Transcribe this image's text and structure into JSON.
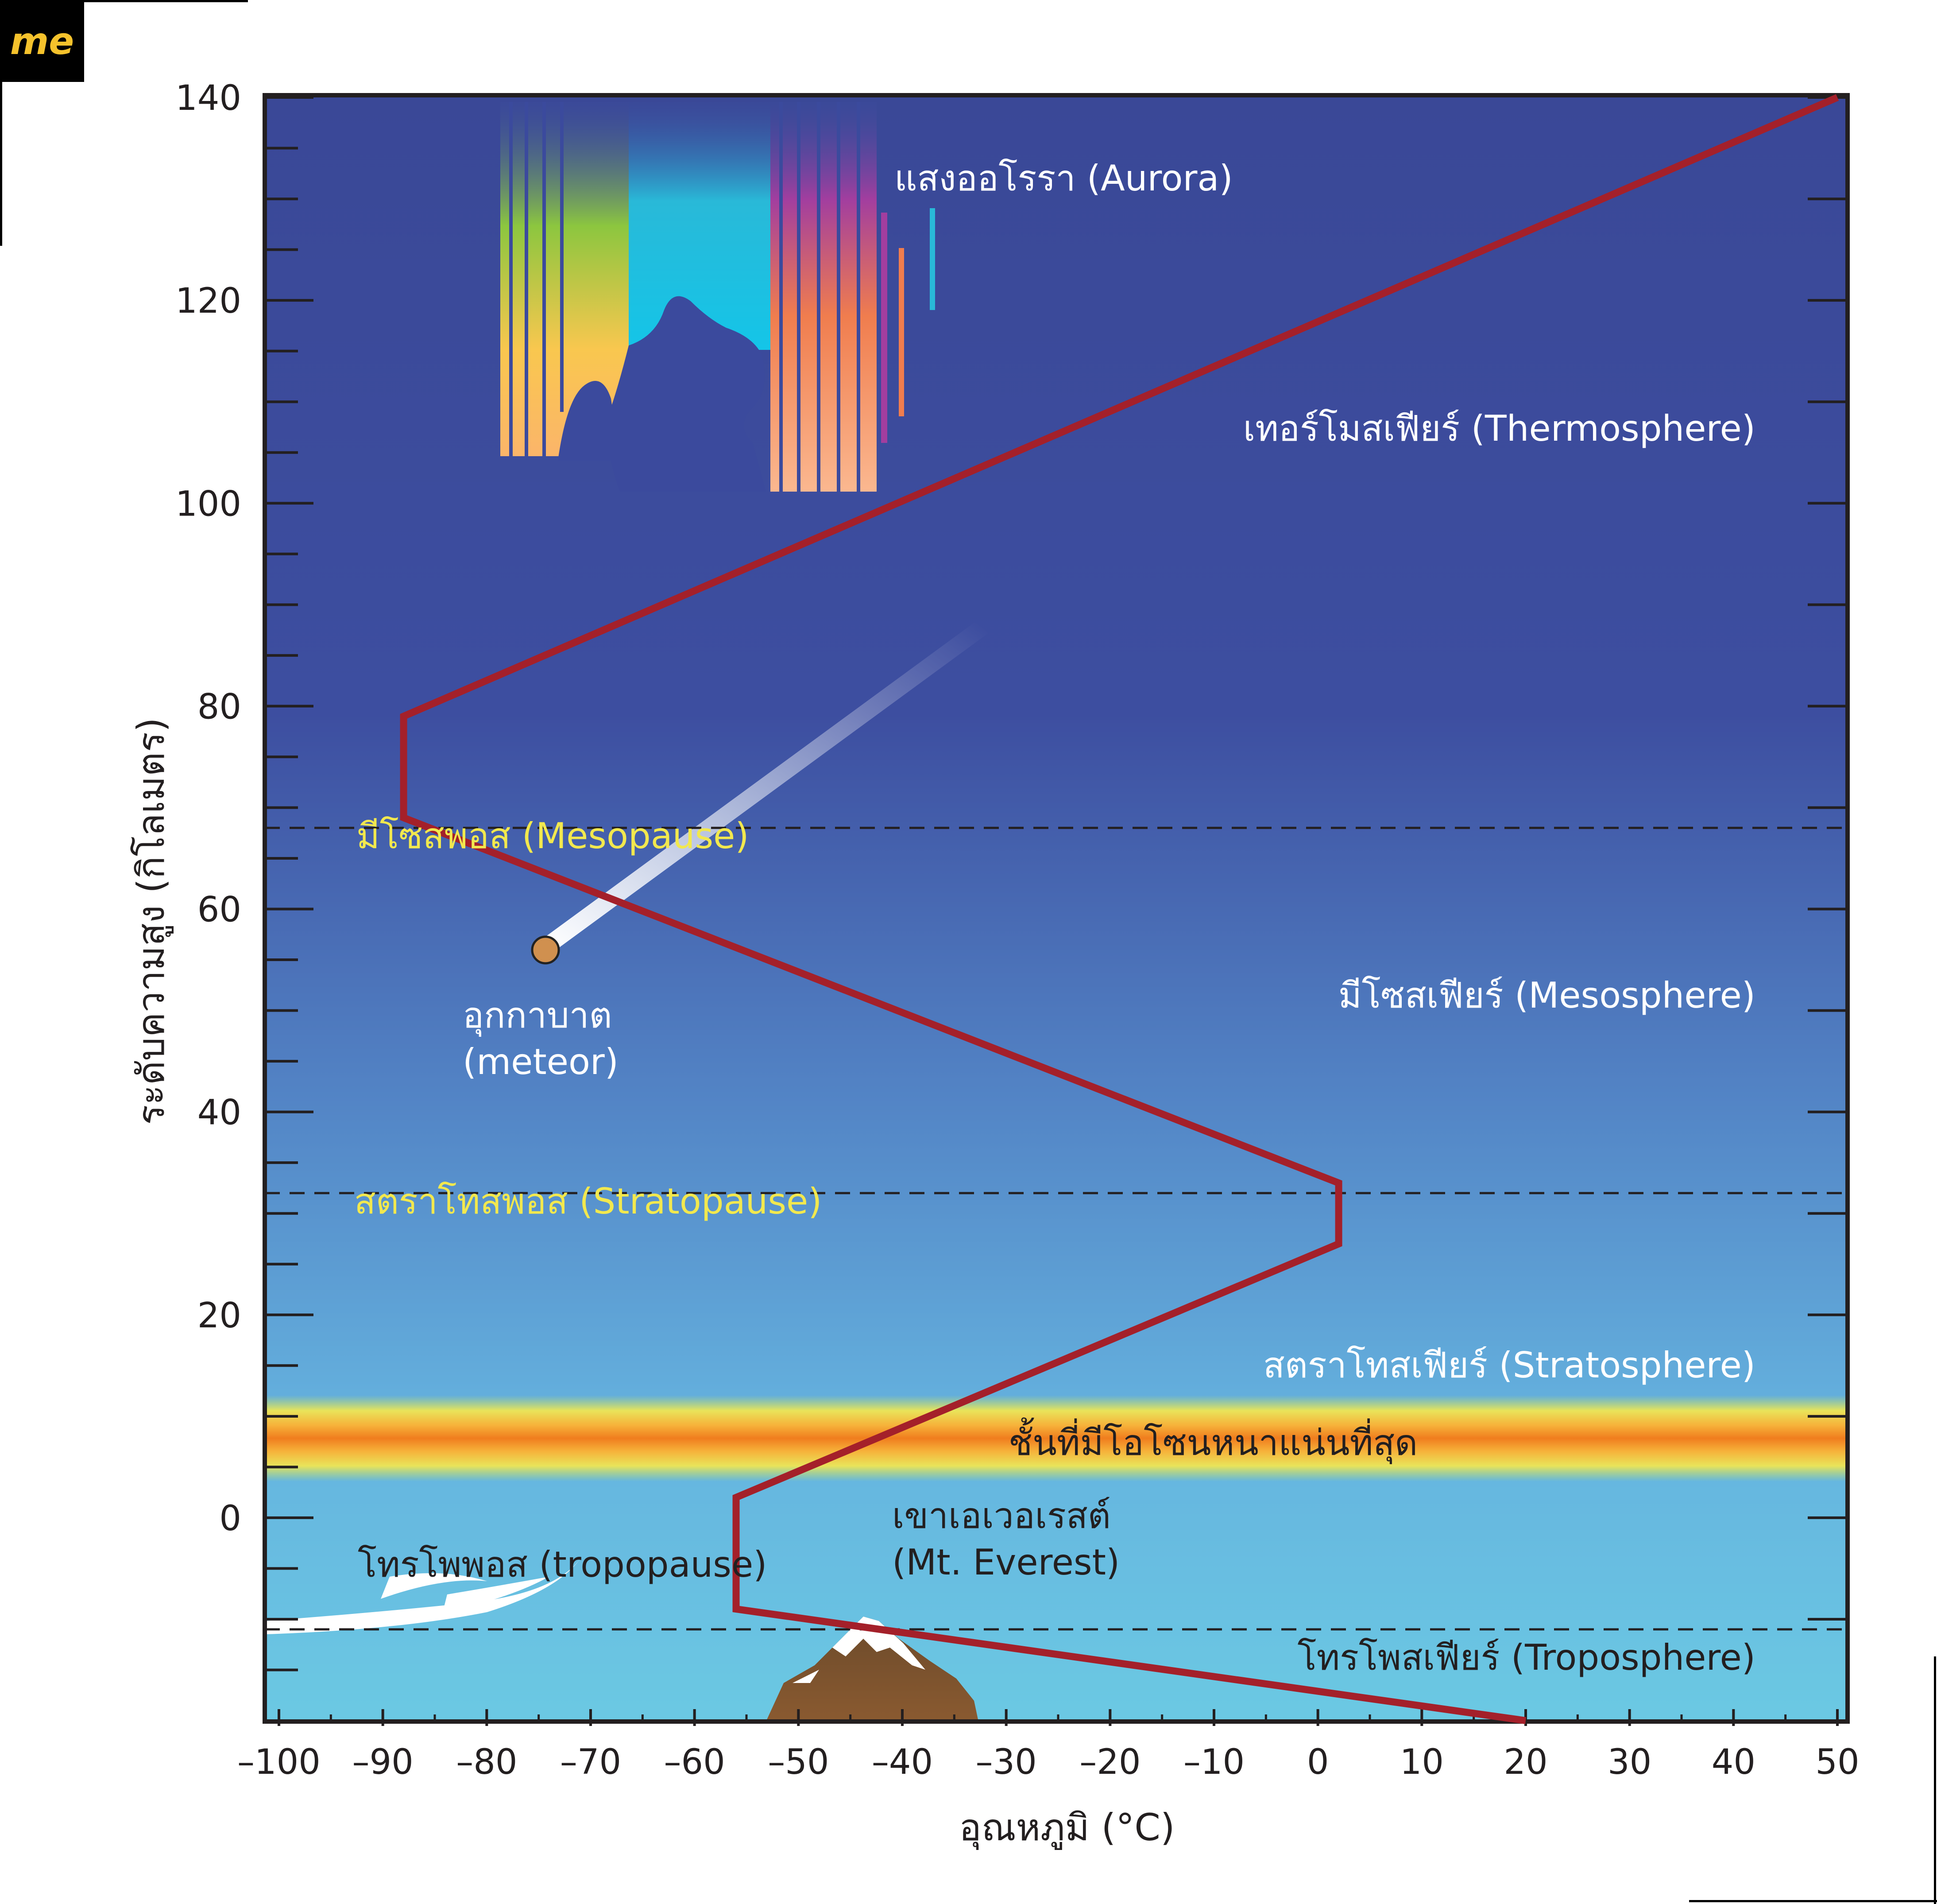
{
  "logo": {
    "text": "me"
  },
  "chart_data": {
    "type": "line",
    "xlabel": "อุณหภูมิ (°C)",
    "ylabel": "ระดับความสูง (กิโลเมตร)",
    "xlim": [
      -100,
      50
    ],
    "ylim": [
      -20,
      140
    ],
    "x_ticks": [
      -100,
      -90,
      -80,
      -70,
      -60,
      -50,
      -40,
      -30,
      -20,
      -10,
      0,
      10,
      20,
      30,
      40,
      50
    ],
    "y_ticks": [
      0,
      20,
      40,
      60,
      80,
      100,
      120,
      140
    ],
    "grid": false,
    "series": [
      {
        "color": "#a4202a",
        "points": [
          {
            "x": 20,
            "y": -20
          },
          {
            "x": -56,
            "y": -9
          },
          {
            "x": -56,
            "y": 2
          },
          {
            "x": 2,
            "y": 27
          },
          {
            "x": 2,
            "y": 33
          },
          {
            "x": -88,
            "y": 69
          },
          {
            "x": -88,
            "y": 79
          },
          {
            "x": 50,
            "y": 140
          }
        ]
      }
    ],
    "boundaries": [
      {
        "label": "มีโซสพอส (Mesopause)",
        "y": 68
      },
      {
        "label": "สตราโทสพอส (Stratopause)",
        "y": 32
      },
      {
        "label": "โทรโพพอส (tropopause)",
        "y": -11
      }
    ],
    "layer_labels": {
      "thermosphere": "เทอร์โมสเฟียร์ (Thermosphere)",
      "mesosphere": "มีโซสเฟียร์ (Mesosphere)",
      "stratosphere": "สตราโทสเฟียร์ (Stratosphere)",
      "troposphere": "โทรโพสเฟียร์ (Troposphere)"
    },
    "ozone": {
      "label": "ชั้นที่มีโอโซนหนาแน่นที่สุด",
      "y_center": 3
    },
    "annotations": {
      "aurora": "แสงออโรรา (Aurora)",
      "meteor_line1": "อุกกาบาต",
      "meteor_line2": "(meteor)",
      "everest_line1": "เขาเอเวอเรสต์",
      "everest_line2": "(Mt. Everest)"
    },
    "colors": {
      "sky_top": "#3a4897",
      "sky_mid": "#4f7cc1",
      "sky_bottom": "#6bc7e2",
      "curve": "#a4202a",
      "boundary_label": "#f2e84e",
      "ozone_core": "#f07d1e"
    }
  }
}
